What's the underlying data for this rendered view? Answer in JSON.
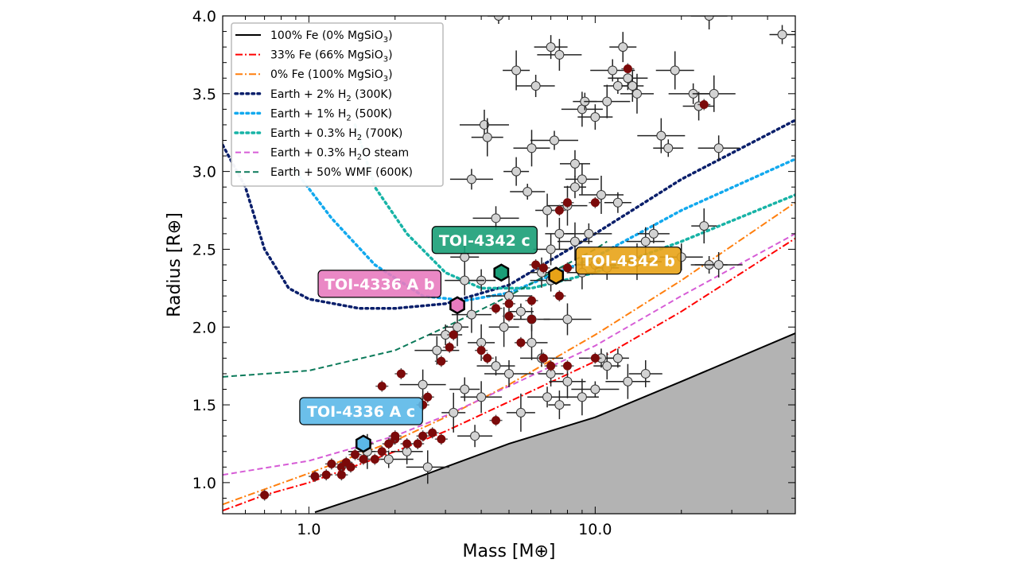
{
  "chart_data": {
    "type": "scatter",
    "xlabel": "Mass [M⊕]",
    "ylabel": "Radius [R⊕]",
    "xscale": "log",
    "xlim": [
      0.5,
      50
    ],
    "ylim": [
      0.8,
      4.0
    ],
    "xticks": [
      1.0,
      10.0
    ],
    "xtick_labels": [
      "1.0",
      "10.0"
    ],
    "yticks": [
      1.0,
      1.5,
      2.0,
      2.5,
      3.0,
      3.5,
      4.0
    ],
    "ytick_labels": [
      "1.0",
      "1.5",
      "2.0",
      "2.5",
      "3.0",
      "3.5",
      "4.0"
    ],
    "grid": false,
    "legend_position": "top-left",
    "curves": [
      {
        "name": "100% Fe (0% MgSiO3)",
        "label_main": "100% Fe (0% MgSiO",
        "label_sub": "3",
        "label_tail": ")",
        "color": "#000000",
        "style": "solid",
        "points": [
          [
            1.05,
            0.81
          ],
          [
            2,
            0.98
          ],
          [
            3,
            1.1
          ],
          [
            5,
            1.25
          ],
          [
            10,
            1.42
          ],
          [
            20,
            1.65
          ],
          [
            50,
            1.96
          ]
        ]
      },
      {
        "name": "33% Fe (66% MgSiO3)",
        "label_main": "33% Fe (66% MgSiO",
        "label_sub": "3",
        "label_tail": ")",
        "color": "#ff0000",
        "style": "dashdot",
        "points": [
          [
            0.5,
            0.82
          ],
          [
            0.7,
            0.92
          ],
          [
            1,
            1.0
          ],
          [
            2,
            1.2
          ],
          [
            3,
            1.33
          ],
          [
            5,
            1.52
          ],
          [
            10,
            1.78
          ],
          [
            20,
            2.1
          ],
          [
            50,
            2.57
          ]
        ]
      },
      {
        "name": "0% Fe (100% MgSiO3)",
        "label_main": "0% Fe (100% MgSiO",
        "label_sub": "3",
        "label_tail": ")",
        "color": "#ff7f0e",
        "style": "dashdot",
        "points": [
          [
            0.5,
            0.86
          ],
          [
            1,
            1.06
          ],
          [
            2,
            1.27
          ],
          [
            3,
            1.42
          ],
          [
            5,
            1.63
          ],
          [
            10,
            1.95
          ],
          [
            20,
            2.3
          ],
          [
            50,
            2.8
          ]
        ]
      },
      {
        "name": "Earth + 2% H2 (300K)",
        "label_main": "Earth + 2% H",
        "label_sub": "2",
        "label_tail": " (300K)",
        "color": "#0a1f6b",
        "style": "dotted",
        "points": [
          [
            0.5,
            3.17
          ],
          [
            0.6,
            2.9
          ],
          [
            0.7,
            2.5
          ],
          [
            0.85,
            2.25
          ],
          [
            1,
            2.18
          ],
          [
            1.5,
            2.12
          ],
          [
            2,
            2.12
          ],
          [
            3,
            2.15
          ],
          [
            5,
            2.27
          ],
          [
            10,
            2.6
          ],
          [
            20,
            2.95
          ],
          [
            50,
            3.33
          ]
        ]
      },
      {
        "name": "Earth + 1% H2 (500K)",
        "label_main": "Earth + 1% H",
        "label_sub": "2",
        "label_tail": " (500K)",
        "color": "#12a9ee",
        "style": "dotted",
        "points": [
          [
            0.9,
            3.0
          ],
          [
            1.2,
            2.7
          ],
          [
            1.7,
            2.4
          ],
          [
            2.5,
            2.2
          ],
          [
            3.5,
            2.17
          ],
          [
            5,
            2.22
          ],
          [
            10,
            2.45
          ],
          [
            20,
            2.75
          ],
          [
            50,
            3.08
          ]
        ]
      },
      {
        "name": "Earth + 0.3% H2 (700K)",
        "label_main": "Earth + 0.3% H",
        "label_sub": "2",
        "label_tail": " (700K)",
        "color": "#17b3a6",
        "style": "dotted",
        "points": [
          [
            1.45,
            3.3
          ],
          [
            1.7,
            2.9
          ],
          [
            2.2,
            2.6
          ],
          [
            3,
            2.35
          ],
          [
            4,
            2.25
          ],
          [
            6,
            2.25
          ],
          [
            10,
            2.35
          ],
          [
            20,
            2.55
          ],
          [
            50,
            2.85
          ]
        ]
      },
      {
        "name": "Earth + 0.3% H2O steam",
        "label_main": "Earth + 0.3% H",
        "label_sub": "2",
        "label_tail": "O steam",
        "color": "#d65cd6",
        "style": "dashed",
        "points": [
          [
            0.5,
            1.05
          ],
          [
            1,
            1.14
          ],
          [
            2,
            1.3
          ],
          [
            3,
            1.43
          ],
          [
            5,
            1.62
          ],
          [
            10,
            1.88
          ],
          [
            20,
            2.2
          ],
          [
            50,
            2.6
          ]
        ]
      },
      {
        "name": "Earth + 50% WMF (600K)",
        "label_main": "Earth + 50% WMF (600K)",
        "label_sub": "",
        "label_tail": "",
        "color": "#0b7a5a",
        "style": "dashed",
        "points": [
          [
            0.5,
            1.68
          ],
          [
            1,
            1.72
          ],
          [
            2,
            1.85
          ],
          [
            3,
            2.0
          ],
          [
            5,
            2.2
          ],
          [
            7,
            2.35
          ],
          [
            10,
            2.5
          ],
          [
            11,
            2.55
          ]
        ]
      }
    ],
    "known_planets_color": "#d3d3d3",
    "known_planets": [
      [
        4.6,
        4.0
      ],
      [
        7.0,
        3.8
      ],
      [
        7.5,
        3.75
      ],
      [
        5.3,
        3.65
      ],
      [
        6.2,
        3.55
      ],
      [
        4.1,
        3.3
      ],
      [
        4.2,
        3.22
      ],
      [
        3.7,
        2.95
      ],
      [
        5.3,
        3.0
      ],
      [
        6.0,
        3.15
      ],
      [
        7.2,
        3.2
      ],
      [
        8.5,
        3.05
      ],
      [
        9.0,
        3.4
      ],
      [
        9.2,
        3.45
      ],
      [
        10.0,
        3.35
      ],
      [
        11.0,
        3.45
      ],
      [
        12,
        3.55
      ],
      [
        13,
        3.6
      ],
      [
        13.5,
        3.55
      ],
      [
        14,
        3.5
      ],
      [
        11.5,
        3.65
      ],
      [
        12.5,
        3.8
      ],
      [
        19,
        3.65
      ],
      [
        22,
        3.5
      ],
      [
        23,
        3.42
      ],
      [
        26,
        3.5
      ],
      [
        45,
        3.88
      ],
      [
        25,
        4.0
      ],
      [
        17,
        3.23
      ],
      [
        18,
        3.15
      ],
      [
        27,
        3.15
      ],
      [
        6.8,
        2.75
      ],
      [
        5.8,
        2.87
      ],
      [
        4.5,
        2.7
      ],
      [
        7.5,
        2.6
      ],
      [
        8,
        2.78
      ],
      [
        8.5,
        2.9
      ],
      [
        9,
        2.95
      ],
      [
        10.5,
        2.85
      ],
      [
        12,
        2.8
      ],
      [
        15,
        2.55
      ],
      [
        14,
        2.42
      ],
      [
        16,
        2.6
      ],
      [
        20,
        2.45
      ],
      [
        24,
        2.65
      ],
      [
        25,
        2.4
      ],
      [
        27,
        2.4
      ],
      [
        9,
        2.35
      ],
      [
        10,
        2.4
      ],
      [
        11,
        2.38
      ],
      [
        7,
        2.5
      ],
      [
        5,
        2.2
      ],
      [
        4,
        2.3
      ],
      [
        3.5,
        2.3
      ],
      [
        3.3,
        2.0
      ],
      [
        3,
        1.95
      ],
      [
        2.8,
        1.85
      ],
      [
        4,
        1.9
      ],
      [
        4.5,
        1.75
      ],
      [
        5,
        1.7
      ],
      [
        6,
        1.9
      ],
      [
        6.5,
        1.8
      ],
      [
        7,
        1.7
      ],
      [
        8,
        1.65
      ],
      [
        10,
        1.6
      ],
      [
        3.5,
        1.6
      ],
      [
        4,
        1.55
      ],
      [
        3.2,
        1.45
      ],
      [
        3.8,
        1.3
      ],
      [
        2.5,
        1.63
      ],
      [
        5.5,
        1.45
      ],
      [
        6.8,
        1.55
      ],
      [
        7.5,
        1.5
      ],
      [
        9,
        1.55
      ],
      [
        10.5,
        1.8
      ],
      [
        11,
        1.75
      ],
      [
        1.6,
        1.2
      ],
      [
        1.9,
        1.15
      ],
      [
        2.2,
        1.2
      ],
      [
        2.6,
        1.1
      ],
      [
        5.5,
        2.1
      ],
      [
        6,
        2.05
      ],
      [
        8,
        2.05
      ],
      [
        4.8,
        2.0
      ],
      [
        7,
        2.3
      ],
      [
        6.5,
        2.35
      ],
      [
        8.5,
        2.55
      ],
      [
        9.5,
        2.6
      ],
      [
        3.5,
        2.45
      ],
      [
        3.7,
        2.08
      ],
      [
        12,
        1.8
      ],
      [
        15,
        1.7
      ],
      [
        13,
        1.65
      ]
    ],
    "m_dwarf_planets_color": "#7b0a0a",
    "m_dwarf_planets": [
      [
        0.7,
        0.92
      ],
      [
        1.05,
        1.04
      ],
      [
        1.15,
        1.05
      ],
      [
        1.3,
        1.1
      ],
      [
        1.35,
        1.13
      ],
      [
        1.4,
        1.1
      ],
      [
        1.45,
        1.18
      ],
      [
        1.55,
        1.15
      ],
      [
        1.7,
        1.15
      ],
      [
        1.8,
        1.2
      ],
      [
        1.9,
        1.25
      ],
      [
        2.0,
        1.28
      ],
      [
        2.2,
        1.25
      ],
      [
        2.4,
        1.25
      ],
      [
        2.5,
        1.3
      ],
      [
        2.7,
        1.32
      ],
      [
        2.9,
        1.28
      ],
      [
        2.6,
        1.55
      ],
      [
        1.8,
        1.62
      ],
      [
        2.1,
        1.7
      ],
      [
        2.9,
        1.78
      ],
      [
        3.1,
        1.87
      ],
      [
        3.2,
        1.95
      ],
      [
        4,
        1.85
      ],
      [
        4.2,
        1.8
      ],
      [
        4.5,
        1.4
      ],
      [
        5,
        2.07
      ],
      [
        6,
        2.05
      ],
      [
        5.5,
        1.9
      ],
      [
        6.6,
        1.8
      ],
      [
        8,
        1.75
      ],
      [
        10,
        1.8
      ],
      [
        7,
        1.75
      ],
      [
        6.2,
        2.4
      ],
      [
        6.6,
        2.38
      ],
      [
        8,
        2.38
      ],
      [
        7.5,
        2.2
      ],
      [
        5,
        2.15
      ],
      [
        7.5,
        2.75
      ],
      [
        8,
        2.8
      ],
      [
        10,
        2.8
      ],
      [
        13,
        3.66
      ],
      [
        24,
        3.43
      ],
      [
        4.5,
        2.12
      ],
      [
        6,
        2.17
      ],
      [
        2,
        1.3
      ],
      [
        1.6,
        1.25
      ],
      [
        1.3,
        1.05
      ],
      [
        1.2,
        1.12
      ],
      [
        2.5,
        1.5
      ]
    ],
    "highlighted": [
      {
        "label": "TOI-4336 A c",
        "mass": 1.55,
        "radius": 1.25,
        "color": "#5bb8e8"
      },
      {
        "label": "TOI-4336 A b",
        "mass": 3.3,
        "radius": 2.14,
        "color": "#e87bbf"
      },
      {
        "label": "TOI-4342 c",
        "mass": 4.7,
        "radius": 2.35,
        "color": "#1a9e77"
      },
      {
        "label": "TOI-4342 b",
        "mass": 7.3,
        "radius": 2.33,
        "color": "#e8a317"
      }
    ],
    "rocky_limit_fill": "#b3b3b3"
  }
}
